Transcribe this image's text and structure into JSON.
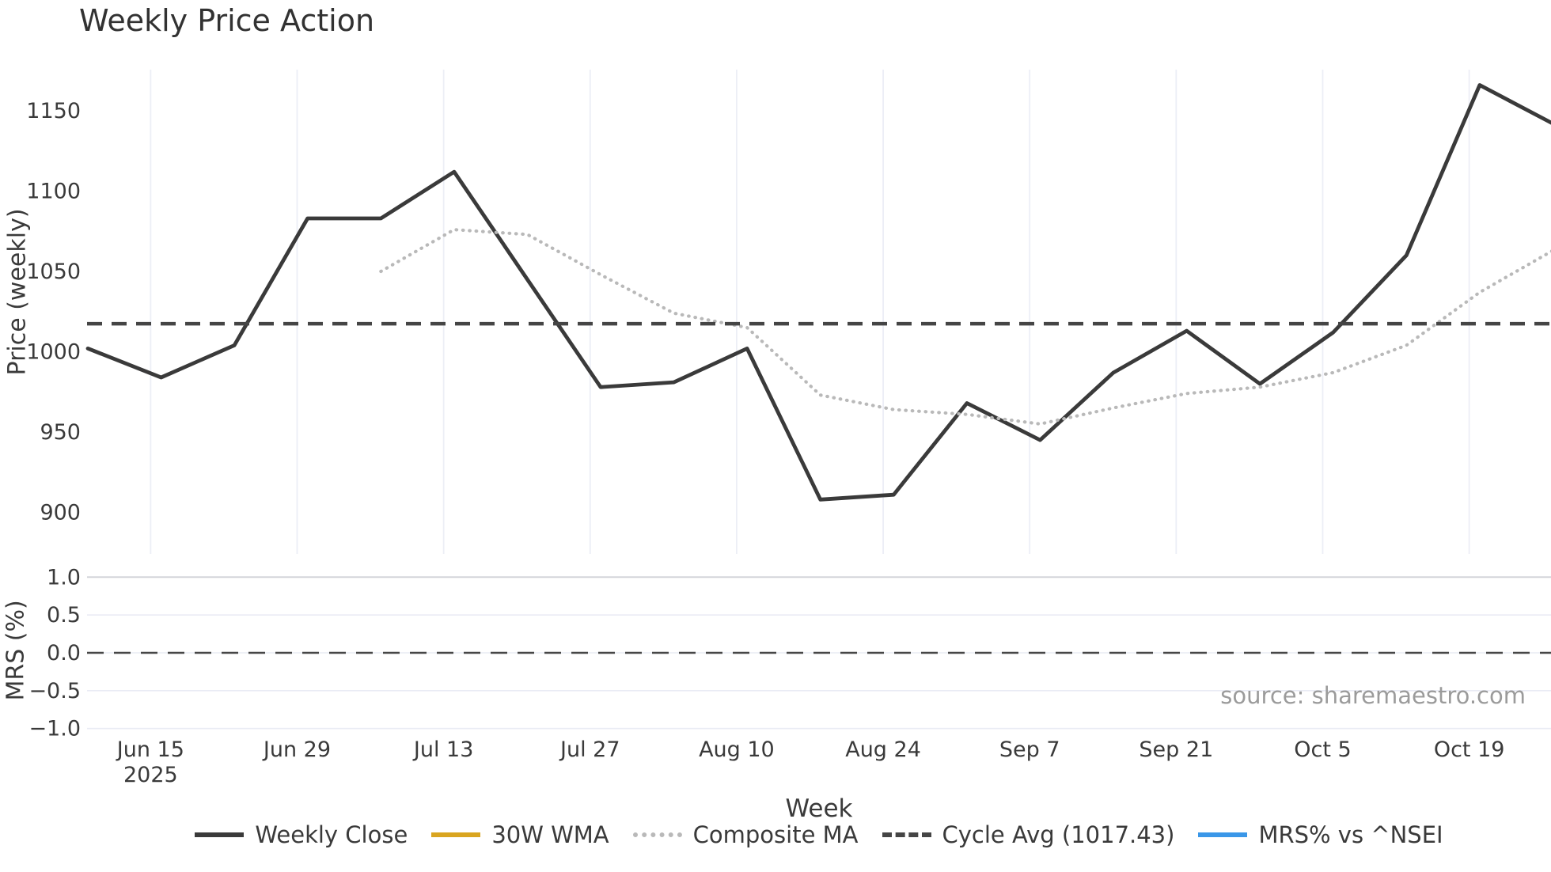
{
  "page": {
    "title": "Weekly Price Action",
    "source_note": "source: sharemaestro.com"
  },
  "colors": {
    "weekly_close": "#3a3a3a",
    "wma_30w": "#d9a520",
    "composite_ma": "#b9b9b9",
    "cycle_avg": "#454545",
    "mrs_line": "#3a97e8",
    "grid_vertical": "#eceef6",
    "grid_horizontal_light": "#e9ebf4",
    "grid_horizontal_dark": "#cfd1d6",
    "tick_text": "#3a3a3a",
    "source_text": "#9b9b9b"
  },
  "legend": {
    "items": [
      {
        "label": "Weekly Close",
        "color": "#3a3a3a",
        "style": "solid"
      },
      {
        "label": "30W WMA",
        "color": "#d9a520",
        "style": "solid"
      },
      {
        "label": "Composite MA",
        "color": "#b9b9b9",
        "style": "dotted"
      },
      {
        "label": "Cycle Avg (1017.43)",
        "color": "#454545",
        "style": "dashed"
      },
      {
        "label": "MRS% vs ^NSEI",
        "color": "#3a97e8",
        "style": "solid"
      }
    ]
  },
  "chart_data": {
    "type": "line",
    "title": "Weekly Price Action",
    "xlabel": "Week",
    "ylabel_top": "Price (weekly)",
    "ylabel_bottom": "MRS (%)",
    "layout_hints": {
      "panels": 2,
      "grid_top_panel": "vertical only",
      "grid_bottom_panel": "horizontal only",
      "legend_position": "bottom center",
      "title_align": "left"
    },
    "x_week_dates": [
      "Jun 9",
      "Jun 16",
      "Jun 23",
      "Jun 30",
      "Jul 7",
      "Jul 14",
      "Jul 21",
      "Jul 28",
      "Aug 4",
      "Aug 11",
      "Aug 18",
      "Aug 25",
      "Sep 1",
      "Sep 8",
      "Sep 15",
      "Sep 22",
      "Sep 29",
      "Oct 6",
      "Oct 13",
      "Oct 20",
      "Oct 27"
    ],
    "x_tick_labels": [
      {
        "label": "Jun 15",
        "sublabel": "2025",
        "day": 6
      },
      {
        "label": "Jun 29",
        "sublabel": "",
        "day": 20
      },
      {
        "label": "Jul 13",
        "sublabel": "",
        "day": 34
      },
      {
        "label": "Jul 27",
        "sublabel": "",
        "day": 48
      },
      {
        "label": "Aug 10",
        "sublabel": "",
        "day": 62
      },
      {
        "label": "Aug 24",
        "sublabel": "",
        "day": 76
      },
      {
        "label": "Sep 7",
        "sublabel": "",
        "day": 90
      },
      {
        "label": "Sep 21",
        "sublabel": "",
        "day": 104
      },
      {
        "label": "Oct 5",
        "sublabel": "",
        "day": 118
      },
      {
        "label": "Oct 19",
        "sublabel": "",
        "day": 132
      }
    ],
    "price_axis": {
      "ticks": [
        1150,
        1100,
        1050,
        1000,
        950,
        900
      ],
      "range": [
        874,
        1177
      ]
    },
    "mrs_axis": {
      "ticks": [
        {
          "value": 1.0,
          "label": "1.0"
        },
        {
          "value": 0.5,
          "label": "0.5"
        },
        {
          "value": 0.0,
          "label": "0.0"
        },
        {
          "value": -0.5,
          "label": "−0.5"
        },
        {
          "value": -1.0,
          "label": "−1.0"
        }
      ],
      "range": [
        -1.18,
        1.18
      ],
      "zero_dashed_line": 0.0
    },
    "series": [
      {
        "name": "Weekly Close",
        "panel": "top",
        "style": "solid",
        "color": "#3a3a3a",
        "width": 4.8,
        "values": [
          1002,
          984,
          1004,
          1083,
          1083,
          1112,
          1045,
          978,
          981,
          1002,
          908,
          911,
          968,
          945,
          987,
          1013,
          980,
          1012,
          1060,
          1166,
          1142
        ]
      },
      {
        "name": "30W WMA",
        "panel": "top",
        "style": "solid",
        "color": "#d9a520",
        "width": 4.8,
        "values": []
      },
      {
        "name": "Composite MA",
        "panel": "top",
        "style": "dotted",
        "color": "#b9b9b9",
        "width": 4.2,
        "values": [
          null,
          null,
          null,
          null,
          1050,
          1076,
          1073,
          1048,
          1024,
          1015,
          973,
          964,
          961,
          955,
          965,
          974,
          978,
          987,
          1004,
          1037,
          1063
        ]
      },
      {
        "name": "Cycle Avg (1017.43)",
        "panel": "top",
        "style": "dashed",
        "color": "#454545",
        "width": 4.4,
        "constant": 1017.43
      },
      {
        "name": "MRS% vs ^NSEI",
        "panel": "bottom",
        "style": "solid",
        "color": "#3a97e8",
        "width": 4,
        "values": []
      }
    ]
  }
}
